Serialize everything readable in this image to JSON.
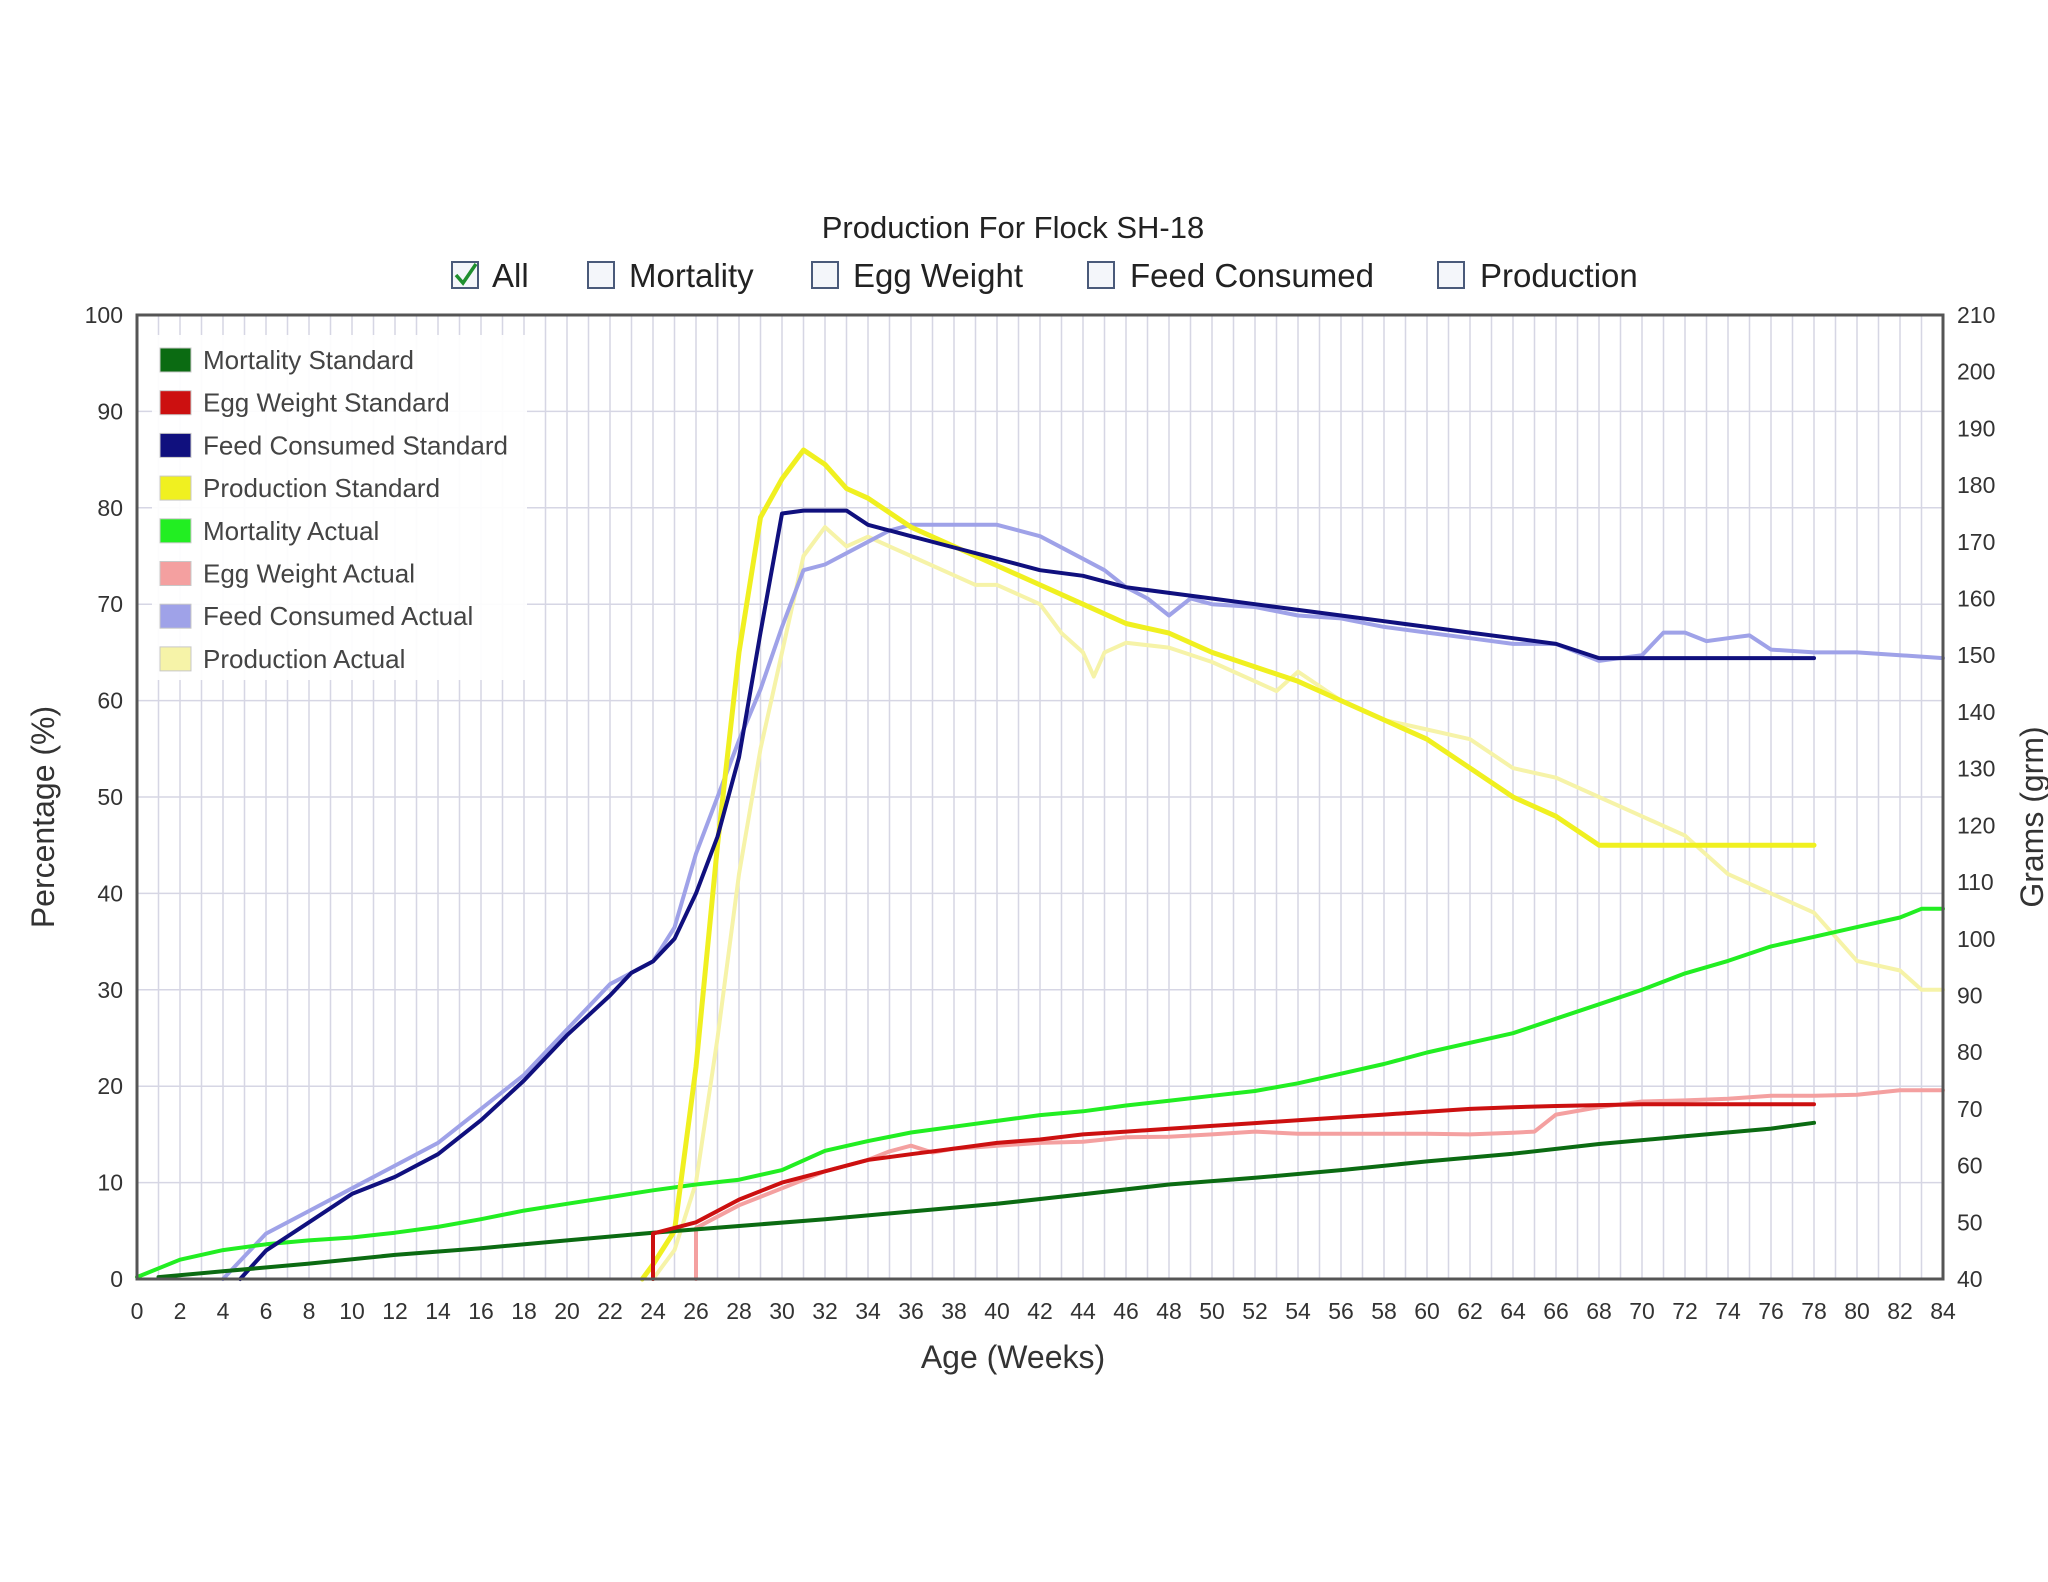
{
  "header": {
    "title": "Production For Flock SH-18",
    "filters": [
      {
        "label": "All",
        "checked": true
      },
      {
        "label": "Mortality",
        "checked": false
      },
      {
        "label": "Egg Weight",
        "checked": false
      },
      {
        "label": "Feed Consumed",
        "checked": false
      },
      {
        "label": "Production",
        "checked": false
      }
    ]
  },
  "chart_data": {
    "type": "line",
    "title": "Production For Flock SH-18",
    "xlabel": "Age (Weeks)",
    "ylabel": "Percentage (%)",
    "y2label": "Grams (grm)",
    "xlim": [
      0,
      84
    ],
    "ylim": [
      0,
      100
    ],
    "y2lim": [
      40,
      210
    ],
    "x_ticks": [
      0,
      2,
      4,
      6,
      8,
      10,
      12,
      14,
      16,
      18,
      20,
      22,
      24,
      26,
      28,
      30,
      32,
      34,
      36,
      38,
      40,
      42,
      44,
      46,
      48,
      50,
      52,
      54,
      56,
      58,
      60,
      62,
      64,
      66,
      68,
      70,
      72,
      74,
      76,
      78,
      80,
      82,
      84
    ],
    "y_ticks": [
      0,
      10,
      20,
      30,
      40,
      50,
      60,
      70,
      80,
      90,
      100
    ],
    "y2_ticks": [
      40,
      50,
      60,
      70,
      80,
      90,
      100,
      110,
      120,
      130,
      140,
      150,
      160,
      170,
      180,
      190,
      200,
      210
    ],
    "grid": true,
    "legend_position": "top-left",
    "series": [
      {
        "name": "Mortality Standard",
        "axis": "left",
        "color": "#0b6b12",
        "width": 4,
        "points": [
          [
            1,
            0.2
          ],
          [
            4,
            0.8
          ],
          [
            8,
            1.6
          ],
          [
            12,
            2.5
          ],
          [
            16,
            3.2
          ],
          [
            20,
            4.0
          ],
          [
            24,
            4.8
          ],
          [
            28,
            5.5
          ],
          [
            32,
            6.2
          ],
          [
            36,
            7.0
          ],
          [
            40,
            7.8
          ],
          [
            44,
            8.8
          ],
          [
            48,
            9.8
          ],
          [
            52,
            10.5
          ],
          [
            56,
            11.3
          ],
          [
            60,
            12.2
          ],
          [
            64,
            13.0
          ],
          [
            68,
            14.0
          ],
          [
            72,
            14.8
          ],
          [
            76,
            15.6
          ],
          [
            78,
            16.2
          ]
        ]
      },
      {
        "name": "Egg Weight Standard",
        "axis": "right",
        "color": "#cc1010",
        "width": 4,
        "points": [
          [
            24,
            40
          ],
          [
            24,
            48
          ],
          [
            26,
            50
          ],
          [
            28,
            54
          ],
          [
            30,
            57
          ],
          [
            32,
            59
          ],
          [
            34,
            61
          ],
          [
            36,
            62
          ],
          [
            38,
            63
          ],
          [
            40,
            64
          ],
          [
            42,
            64.6
          ],
          [
            44,
            65.5
          ],
          [
            46,
            66
          ],
          [
            48,
            66.5
          ],
          [
            50,
            67
          ],
          [
            52,
            67.5
          ],
          [
            54,
            68
          ],
          [
            56,
            68.5
          ],
          [
            58,
            69
          ],
          [
            60,
            69.5
          ],
          [
            62,
            70
          ],
          [
            64,
            70.3
          ],
          [
            66,
            70.5
          ],
          [
            70,
            70.8
          ],
          [
            74,
            70.8
          ],
          [
            78,
            70.8
          ]
        ]
      },
      {
        "name": "Feed Consumed Standard",
        "axis": "right",
        "color": "#10107e",
        "width": 4,
        "points": [
          [
            4.8,
            40
          ],
          [
            6,
            45
          ],
          [
            8,
            50
          ],
          [
            10,
            55
          ],
          [
            12,
            58
          ],
          [
            14,
            62
          ],
          [
            16,
            68
          ],
          [
            18,
            75
          ],
          [
            20,
            83
          ],
          [
            22,
            90
          ],
          [
            23,
            94
          ],
          [
            24,
            96
          ],
          [
            25,
            100
          ],
          [
            26,
            108
          ],
          [
            27,
            118
          ],
          [
            28,
            132
          ],
          [
            29,
            154
          ],
          [
            30,
            175
          ],
          [
            31,
            175.5
          ],
          [
            33,
            175.5
          ],
          [
            34,
            173
          ],
          [
            36,
            171
          ],
          [
            38,
            169
          ],
          [
            40,
            167
          ],
          [
            42,
            165
          ],
          [
            44,
            164
          ],
          [
            46,
            162
          ],
          [
            48,
            161
          ],
          [
            50,
            160
          ],
          [
            52,
            159
          ],
          [
            54,
            158
          ],
          [
            56,
            157
          ],
          [
            58,
            156
          ],
          [
            60,
            155
          ],
          [
            62,
            154
          ],
          [
            64,
            153
          ],
          [
            66,
            152
          ],
          [
            68,
            149.5
          ],
          [
            78,
            149.5
          ]
        ]
      },
      {
        "name": "Production Standard",
        "axis": "left",
        "color": "#f0f020",
        "width": 5,
        "points": [
          [
            23.5,
            0
          ],
          [
            24,
            1.5
          ],
          [
            25,
            5
          ],
          [
            26,
            22
          ],
          [
            27,
            45
          ],
          [
            28,
            65
          ],
          [
            29,
            79
          ],
          [
            30,
            83
          ],
          [
            31,
            86
          ],
          [
            32,
            84.5
          ],
          [
            33,
            82
          ],
          [
            34,
            81
          ],
          [
            36,
            78
          ],
          [
            38,
            76
          ],
          [
            40,
            74
          ],
          [
            42,
            72
          ],
          [
            44,
            70
          ],
          [
            46,
            68
          ],
          [
            48,
            67
          ],
          [
            50,
            65
          ],
          [
            52,
            63.5
          ],
          [
            54,
            62
          ],
          [
            56,
            60
          ],
          [
            58,
            58
          ],
          [
            60,
            56
          ],
          [
            62,
            53
          ],
          [
            64,
            50
          ],
          [
            66,
            48
          ],
          [
            68,
            45
          ],
          [
            70,
            45
          ],
          [
            74,
            45
          ],
          [
            78,
            45
          ]
        ]
      },
      {
        "name": "Mortality Actual",
        "axis": "left",
        "color": "#22ee22",
        "width": 4,
        "points": [
          [
            0,
            0.2
          ],
          [
            2,
            2
          ],
          [
            4,
            3
          ],
          [
            6,
            3.6
          ],
          [
            8,
            4
          ],
          [
            10,
            4.3
          ],
          [
            12,
            4.8
          ],
          [
            14,
            5.4
          ],
          [
            16,
            6.2
          ],
          [
            18,
            7.1
          ],
          [
            20,
            7.8
          ],
          [
            22,
            8.5
          ],
          [
            24,
            9.2
          ],
          [
            26,
            9.8
          ],
          [
            28,
            10.3
          ],
          [
            30,
            11.3
          ],
          [
            32,
            13.3
          ],
          [
            34,
            14.3
          ],
          [
            36,
            15.2
          ],
          [
            38,
            15.8
          ],
          [
            40,
            16.4
          ],
          [
            42,
            17.0
          ],
          [
            44,
            17.4
          ],
          [
            46,
            18.0
          ],
          [
            48,
            18.5
          ],
          [
            50,
            19.0
          ],
          [
            52,
            19.5
          ],
          [
            54,
            20.3
          ],
          [
            56,
            21.3
          ],
          [
            58,
            22.3
          ],
          [
            60,
            23.5
          ],
          [
            62,
            24.5
          ],
          [
            64,
            25.5
          ],
          [
            66,
            27.0
          ],
          [
            68,
            28.5
          ],
          [
            70,
            30.0
          ],
          [
            72,
            31.7
          ],
          [
            74,
            33.0
          ],
          [
            76,
            34.5
          ],
          [
            78,
            35.5
          ],
          [
            80,
            36.5
          ],
          [
            82,
            37.5
          ],
          [
            83,
            38.4
          ],
          [
            84,
            38.4
          ]
        ]
      },
      {
        "name": "Egg Weight Actual",
        "axis": "right",
        "color": "#f4a0a0",
        "width": 4,
        "points": [
          [
            26,
            40
          ],
          [
            26,
            49
          ],
          [
            28,
            53
          ],
          [
            30,
            56
          ],
          [
            32,
            59
          ],
          [
            34,
            61
          ],
          [
            35,
            62.5
          ],
          [
            36,
            63.5
          ],
          [
            37,
            62.3
          ],
          [
            38,
            63
          ],
          [
            39,
            63.2
          ],
          [
            40,
            63.5
          ],
          [
            42,
            64
          ],
          [
            44,
            64.2
          ],
          [
            46,
            65
          ],
          [
            48,
            65.1
          ],
          [
            50,
            65.5
          ],
          [
            52,
            66
          ],
          [
            54,
            65.6
          ],
          [
            56,
            65.6
          ],
          [
            58,
            65.6
          ],
          [
            60,
            65.6
          ],
          [
            62,
            65.5
          ],
          [
            64,
            65.8
          ],
          [
            65,
            66
          ],
          [
            66,
            69
          ],
          [
            68,
            70.3
          ],
          [
            70,
            71.3
          ],
          [
            72,
            71.5
          ],
          [
            74,
            71.8
          ],
          [
            76,
            72.3
          ],
          [
            78,
            72.3
          ],
          [
            80,
            72.5
          ],
          [
            82,
            73.3
          ],
          [
            84,
            73.3
          ]
        ]
      },
      {
        "name": "Feed Consumed Actual",
        "axis": "right",
        "color": "#9fa2e8",
        "width": 4,
        "points": [
          [
            4,
            40
          ],
          [
            5,
            44
          ],
          [
            6,
            48
          ],
          [
            8,
            52
          ],
          [
            10,
            56
          ],
          [
            12,
            60
          ],
          [
            14,
            64
          ],
          [
            16,
            70
          ],
          [
            18,
            76
          ],
          [
            20,
            84
          ],
          [
            22,
            92
          ],
          [
            24,
            96
          ],
          [
            25,
            102
          ],
          [
            26,
            115
          ],
          [
            27,
            125
          ],
          [
            28,
            135
          ],
          [
            29,
            144
          ],
          [
            30,
            155
          ],
          [
            31,
            165
          ],
          [
            32,
            166
          ],
          [
            34,
            170
          ],
          [
            35,
            172
          ],
          [
            36,
            173
          ],
          [
            38,
            173
          ],
          [
            40,
            173
          ],
          [
            42,
            171
          ],
          [
            44,
            167
          ],
          [
            45,
            165
          ],
          [
            46,
            162
          ],
          [
            47,
            160
          ],
          [
            48,
            157
          ],
          [
            49,
            160
          ],
          [
            50,
            159
          ],
          [
            52,
            158.5
          ],
          [
            54,
            157
          ],
          [
            56,
            156.5
          ],
          [
            58,
            155
          ],
          [
            60,
            154
          ],
          [
            62,
            153
          ],
          [
            64,
            152
          ],
          [
            66,
            152
          ],
          [
            68,
            149
          ],
          [
            70,
            150
          ],
          [
            71,
            154
          ],
          [
            72,
            154
          ],
          [
            73,
            152.5
          ],
          [
            74,
            153
          ],
          [
            75,
            153.5
          ],
          [
            76,
            151
          ],
          [
            78,
            150.5
          ],
          [
            80,
            150.5
          ],
          [
            82,
            150
          ],
          [
            84,
            149.5
          ]
        ]
      },
      {
        "name": "Production Actual",
        "axis": "left",
        "color": "#f6f3a8",
        "width": 4,
        "points": [
          [
            24,
            0
          ],
          [
            25,
            3
          ],
          [
            26,
            10
          ],
          [
            27,
            25
          ],
          [
            28,
            42
          ],
          [
            29,
            55
          ],
          [
            30,
            65
          ],
          [
            31,
            75
          ],
          [
            32,
            78
          ],
          [
            33,
            76
          ],
          [
            34,
            77
          ],
          [
            35,
            76
          ],
          [
            36,
            75
          ],
          [
            38,
            73
          ],
          [
            39,
            72
          ],
          [
            40,
            72
          ],
          [
            42,
            70
          ],
          [
            43,
            67
          ],
          [
            44,
            65
          ],
          [
            44.5,
            62.5
          ],
          [
            45,
            65
          ],
          [
            46,
            66
          ],
          [
            48,
            65.5
          ],
          [
            50,
            64
          ],
          [
            52,
            62
          ],
          [
            53,
            61
          ],
          [
            54,
            63
          ],
          [
            56,
            60
          ],
          [
            58,
            58
          ],
          [
            60,
            57
          ],
          [
            62,
            56
          ],
          [
            64,
            53
          ],
          [
            66,
            52
          ],
          [
            68,
            50
          ],
          [
            70,
            48
          ],
          [
            72,
            46
          ],
          [
            74,
            42
          ],
          [
            76,
            40
          ],
          [
            78,
            38
          ],
          [
            80,
            33
          ],
          [
            82,
            32
          ],
          [
            83,
            30
          ],
          [
            84,
            30
          ]
        ]
      }
    ]
  }
}
